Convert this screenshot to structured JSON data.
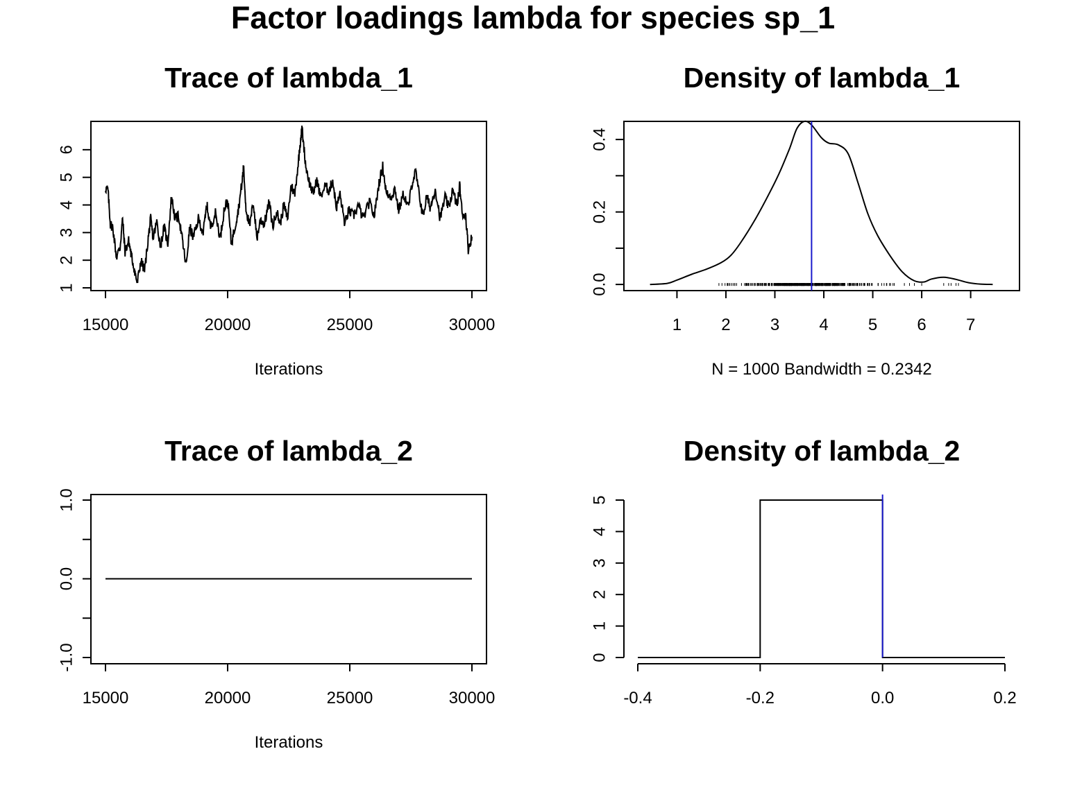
{
  "figure": {
    "title": "Factor loadings lambda for species  sp_1"
  },
  "chart_data": [
    {
      "type": "line",
      "title": "Trace of lambda_1",
      "xlabel": "Iterations",
      "ylabel": "",
      "xlim": [
        15000,
        30000
      ],
      "ylim": [
        1,
        6.8
      ],
      "xticks": [
        15000,
        20000,
        25000,
        30000
      ],
      "yticks": [
        1,
        2,
        3,
        4,
        5,
        6
      ],
      "keypoints": [
        [
          15000,
          4.6
        ],
        [
          15100,
          4.55
        ],
        [
          15200,
          3.3
        ],
        [
          15300,
          3.2
        ],
        [
          15450,
          2.1
        ],
        [
          15600,
          2.5
        ],
        [
          15700,
          3.5
        ],
        [
          15800,
          2.3
        ],
        [
          15950,
          2.7
        ],
        [
          16050,
          2.2
        ],
        [
          16200,
          1.6
        ],
        [
          16300,
          1.15
        ],
        [
          16450,
          2.0
        ],
        [
          16600,
          1.6
        ],
        [
          16750,
          2.8
        ],
        [
          16850,
          3.5
        ],
        [
          16950,
          2.8
        ],
        [
          17100,
          3.4
        ],
        [
          17250,
          2.5
        ],
        [
          17400,
          3.2
        ],
        [
          17550,
          2.6
        ],
        [
          17700,
          4.3
        ],
        [
          17850,
          3.5
        ],
        [
          18000,
          3.6
        ],
        [
          18150,
          2.7
        ],
        [
          18300,
          1.8
        ],
        [
          18450,
          3.2
        ],
        [
          18600,
          2.8
        ],
        [
          18800,
          3.5
        ],
        [
          19000,
          3.0
        ],
        [
          19150,
          4.0
        ],
        [
          19300,
          3.2
        ],
        [
          19500,
          3.7
        ],
        [
          19700,
          2.8
        ],
        [
          19850,
          3.8
        ],
        [
          20000,
          4.2
        ],
        [
          20150,
          2.6
        ],
        [
          20300,
          3.2
        ],
        [
          20450,
          3.9
        ],
        [
          20600,
          4.9
        ],
        [
          20650,
          5.4
        ],
        [
          20750,
          3.9
        ],
        [
          20900,
          3.2
        ],
        [
          21050,
          4.1
        ],
        [
          21200,
          2.8
        ],
        [
          21350,
          3.5
        ],
        [
          21500,
          3.3
        ],
        [
          21700,
          4.1
        ],
        [
          21850,
          3.2
        ],
        [
          22000,
          3.8
        ],
        [
          22150,
          3.3
        ],
        [
          22300,
          4.0
        ],
        [
          22450,
          3.5
        ],
        [
          22600,
          4.7
        ],
        [
          22750,
          4.4
        ],
        [
          22900,
          5.6
        ],
        [
          23000,
          6.5
        ],
        [
          23050,
          6.75
        ],
        [
          23200,
          5.4
        ],
        [
          23350,
          4.8
        ],
        [
          23500,
          4.4
        ],
        [
          23650,
          4.9
        ],
        [
          23800,
          4.3
        ],
        [
          24000,
          4.7
        ],
        [
          24150,
          4.5
        ],
        [
          24300,
          4.9
        ],
        [
          24450,
          3.9
        ],
        [
          24600,
          4.4
        ],
        [
          24800,
          3.3
        ],
        [
          24950,
          3.8
        ],
        [
          25150,
          3.6
        ],
        [
          25350,
          4.0
        ],
        [
          25550,
          3.5
        ],
        [
          25800,
          4.1
        ],
        [
          26000,
          3.6
        ],
        [
          26200,
          4.8
        ],
        [
          26350,
          5.4
        ],
        [
          26500,
          4.4
        ],
        [
          26700,
          4.3
        ],
        [
          26850,
          4.6
        ],
        [
          27000,
          3.8
        ],
        [
          27200,
          4.4
        ],
        [
          27400,
          3.9
        ],
        [
          27550,
          4.8
        ],
        [
          27700,
          5.2
        ],
        [
          27850,
          4.3
        ],
        [
          28000,
          3.6
        ],
        [
          28150,
          4.3
        ],
        [
          28300,
          3.9
        ],
        [
          28500,
          4.6
        ],
        [
          28700,
          3.5
        ],
        [
          28900,
          4.3
        ],
        [
          29050,
          3.9
        ],
        [
          29200,
          4.5
        ],
        [
          29400,
          4.0
        ],
        [
          29500,
          4.7
        ],
        [
          29600,
          3.7
        ],
        [
          29750,
          3.6
        ],
        [
          29850,
          2.4
        ],
        [
          30000,
          2.85
        ]
      ]
    },
    {
      "type": "line",
      "title": "Density of lambda_1",
      "xlabel": "N = 1000   Bandwidth = 0.2342",
      "ylabel": "",
      "xlim": [
        0.2,
        7.7
      ],
      "ylim": [
        -0.017,
        0.45
      ],
      "xticks": [
        1,
        2,
        3,
        4,
        5,
        6,
        7
      ],
      "yticks": [
        0.0,
        0.1,
        0.2,
        0.3,
        0.4
      ],
      "ytick_labels": [
        "0.0",
        "",
        "0.2",
        "",
        "0.4"
      ],
      "vline": 3.75,
      "density_points": [
        [
          0.45,
          0.0
        ],
        [
          0.8,
          0.003
        ],
        [
          1.0,
          0.012
        ],
        [
          1.3,
          0.028
        ],
        [
          1.6,
          0.042
        ],
        [
          1.9,
          0.06
        ],
        [
          2.1,
          0.08
        ],
        [
          2.3,
          0.115
        ],
        [
          2.6,
          0.18
        ],
        [
          2.9,
          0.255
        ],
        [
          3.1,
          0.31
        ],
        [
          3.3,
          0.375
        ],
        [
          3.45,
          0.43
        ],
        [
          3.6,
          0.45
        ],
        [
          3.75,
          0.44
        ],
        [
          3.95,
          0.405
        ],
        [
          4.1,
          0.39
        ],
        [
          4.3,
          0.385
        ],
        [
          4.5,
          0.36
        ],
        [
          4.7,
          0.28
        ],
        [
          4.9,
          0.195
        ],
        [
          5.1,
          0.135
        ],
        [
          5.35,
          0.08
        ],
        [
          5.6,
          0.035
        ],
        [
          5.85,
          0.01
        ],
        [
          6.05,
          0.007
        ],
        [
          6.2,
          0.015
        ],
        [
          6.45,
          0.02
        ],
        [
          6.7,
          0.014
        ],
        [
          6.95,
          0.005
        ],
        [
          7.2,
          0.001
        ],
        [
          7.45,
          0.0
        ]
      ],
      "rug_range": [
        1.1,
        6.75
      ]
    },
    {
      "type": "line",
      "title": "Trace of lambda_2",
      "xlabel": "Iterations",
      "ylabel": "",
      "xlim": [
        15000,
        30000
      ],
      "ylim": [
        -1.0,
        1.0
      ],
      "xticks": [
        15000,
        20000,
        25000,
        30000
      ],
      "yticks": [
        -1.0,
        -0.5,
        0.0,
        0.5,
        1.0
      ],
      "ytick_labels": [
        "-1.0",
        "",
        "0.0",
        "",
        "1.0"
      ],
      "keypoints": [
        [
          15000,
          0.0
        ],
        [
          30000,
          0.0
        ]
      ]
    },
    {
      "type": "line",
      "title": "Density of lambda_2",
      "xlabel": "",
      "ylabel": "",
      "xlim": [
        -0.4,
        0.2
      ],
      "ylim": [
        0,
        5
      ],
      "xticks": [
        -0.4,
        -0.2,
        0.0,
        0.2
      ],
      "xtick_labels": [
        "-0.4",
        "-0.2",
        "0.0",
        "0.2"
      ],
      "yticks": [
        0,
        1,
        2,
        3,
        4,
        5
      ],
      "vline": 0.0,
      "density_points": [
        [
          -0.4,
          0
        ],
        [
          -0.2,
          0
        ],
        [
          -0.2,
          5
        ],
        [
          0.0,
          5
        ],
        [
          0.0,
          0
        ],
        [
          0.2,
          0
        ]
      ]
    }
  ]
}
